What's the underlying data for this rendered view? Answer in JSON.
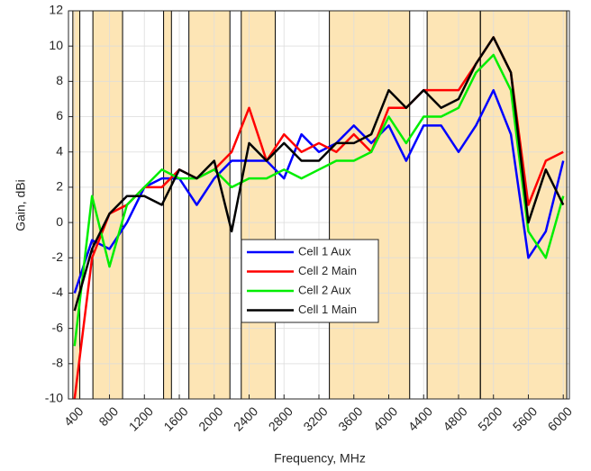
{
  "chart_data": {
    "type": "line",
    "xlabel": "Frequency, MHz",
    "ylabel": "Gain, dBi",
    "xlim": [
      330,
      6070
    ],
    "ylim": [
      -10,
      12
    ],
    "xticks": [
      400,
      800,
      1200,
      1600,
      2000,
      2400,
      2800,
      3200,
      3600,
      4000,
      4400,
      4800,
      5200,
      5600,
      6000
    ],
    "yticks": [
      -10,
      -8,
      -6,
      -4,
      -2,
      0,
      2,
      4,
      6,
      8,
      10,
      12
    ],
    "grid": true,
    "band_color": "#fde5b5",
    "shaded_bands": [
      [
        380,
        460
      ],
      [
        610,
        950
      ],
      [
        1420,
        1510
      ],
      [
        1710,
        2180
      ],
      [
        2310,
        2700
      ],
      [
        3320,
        4240
      ],
      [
        4440,
        5050
      ],
      [
        5050,
        6040
      ]
    ],
    "x": [
      400,
      600,
      800,
      1000,
      1200,
      1400,
      1600,
      1800,
      2000,
      2200,
      2400,
      2600,
      2800,
      3000,
      3200,
      3400,
      3600,
      3800,
      4000,
      4200,
      4400,
      4600,
      4800,
      5000,
      5200,
      5400,
      5600,
      5800,
      6000
    ],
    "series": [
      {
        "name": "Cell 1 Aux",
        "color": "#0000ff",
        "values": [
          -4,
          -1,
          -1.5,
          0,
          2,
          2.5,
          2.5,
          1,
          2.5,
          3.5,
          3.5,
          3.5,
          2.5,
          5,
          4,
          4.5,
          5.5,
          4.5,
          5.5,
          3.5,
          5.5,
          5.5,
          4,
          5.5,
          7.5,
          5,
          -2,
          -0.5,
          3.5
        ]
      },
      {
        "name": "Cell 2 Main",
        "color": "#ff0000",
        "values": [
          -10,
          -2,
          0.5,
          1,
          2,
          2,
          3,
          2.5,
          3,
          4,
          6.5,
          3.5,
          5,
          4,
          4.5,
          4,
          5,
          4,
          6.5,
          6.5,
          7.5,
          7.5,
          7.5,
          9,
          10.5,
          8.5,
          1,
          3.5,
          4
        ]
      },
      {
        "name": "Cell 2 Aux",
        "color": "#00ee00",
        "values": [
          -7,
          1.5,
          -2.5,
          1,
          2,
          3,
          2.5,
          2.5,
          3,
          2,
          2.5,
          2.5,
          3,
          2.5,
          3,
          3.5,
          3.5,
          4,
          6,
          4.5,
          6,
          6,
          6.5,
          8.5,
          9.5,
          7.5,
          -0.5,
          -2,
          1.5
        ]
      },
      {
        "name": "Cell 1 Main",
        "color": "#000000",
        "values": [
          -5,
          -1.5,
          0.5,
          1.5,
          1.5,
          1,
          3,
          2.5,
          3.5,
          -0.5,
          4.5,
          3.5,
          4.5,
          3.5,
          3.5,
          4.5,
          4.5,
          5,
          7.5,
          6.5,
          7.5,
          6.5,
          7,
          9,
          10.5,
          8.5,
          0,
          3,
          1
        ]
      }
    ]
  }
}
